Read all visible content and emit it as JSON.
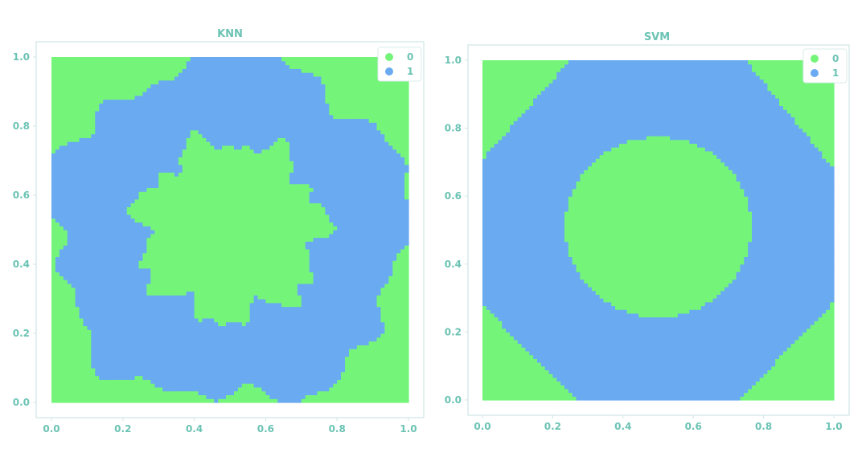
{
  "colors": {
    "class_0": "#74f57a",
    "class_1": "#6aaaf0",
    "text": "#6cc3b4",
    "frame": "#cfe6e4"
  },
  "chart_data": [
    {
      "type": "scatter",
      "title": "KNN",
      "xlabel": "",
      "ylabel": "",
      "xlim": [
        0.0,
        1.0
      ],
      "ylim": [
        0.0,
        1.0
      ],
      "x_ticks": [
        "0.0",
        "0.2",
        "0.4",
        "0.6",
        "0.8",
        "1.0"
      ],
      "y_ticks": [
        "0.0",
        "0.2",
        "0.4",
        "0.6",
        "0.8",
        "1.0"
      ],
      "legend": [
        "0",
        "1"
      ],
      "legend_position": "top-right",
      "grid": false,
      "decision_regions": {
        "background_class": "0",
        "class_1_ring": {
          "center": [
            0.5,
            0.5
          ],
          "inner_radius": 0.26,
          "outer_radius": 0.5,
          "boundary": "irregular"
        }
      }
    },
    {
      "type": "scatter",
      "title": "SVM",
      "xlabel": "",
      "ylabel": "",
      "xlim": [
        0.0,
        1.0
      ],
      "ylim": [
        0.0,
        1.0
      ],
      "x_ticks": [
        "0.0",
        "0.2",
        "0.4",
        "0.6",
        "0.8",
        "1.0"
      ],
      "y_ticks": [
        "0.0",
        "0.2",
        "0.4",
        "0.6",
        "0.8",
        "1.0"
      ],
      "legend": [
        "0",
        "1"
      ],
      "legend_position": "top-right",
      "grid": false,
      "decision_regions": {
        "background_class": "0",
        "class_1_octagon_band": {
          "outer_vertices": [
            [
              0.25,
              1.0
            ],
            [
              0.75,
              1.0
            ],
            [
              1.0,
              0.68
            ],
            [
              1.0,
              0.29
            ],
            [
              0.73,
              0.0
            ],
            [
              0.27,
              0.0
            ],
            [
              0.0,
              0.28
            ],
            [
              0.0,
              0.71
            ]
          ],
          "inner_circle_center": [
            0.5,
            0.51
          ],
          "inner_circle_radius": 0.265,
          "boundary": "smooth"
        }
      }
    }
  ]
}
